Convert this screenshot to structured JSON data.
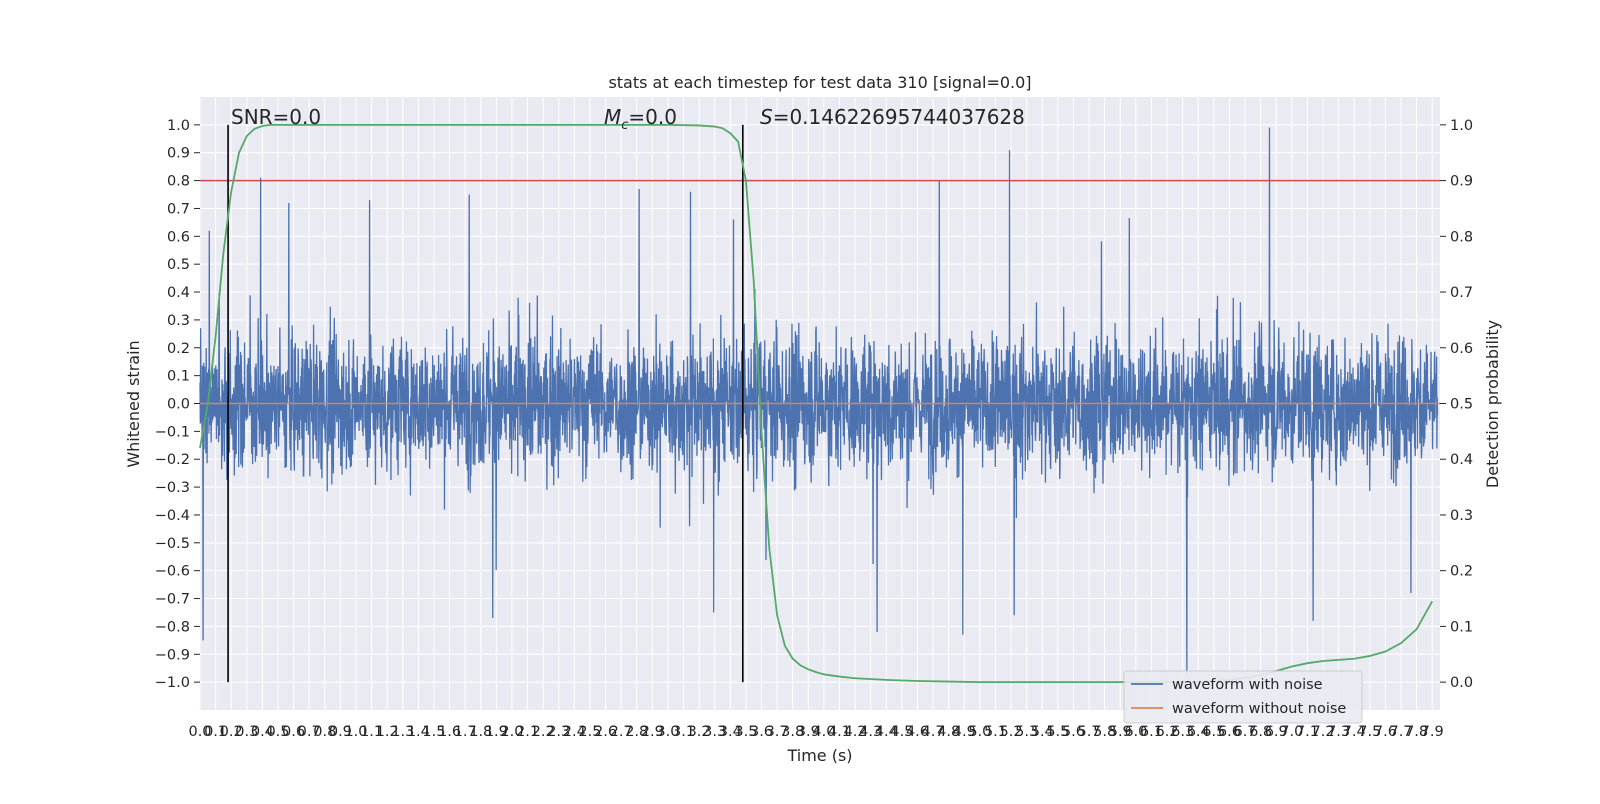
{
  "chart_data": {
    "type": "line",
    "title": "stats at each timestep for test data 310 [signal=0.0]",
    "xlabel": "Time (s)",
    "ylabel": "Whitened strain",
    "y2label": "Detection probability",
    "xlim": [
      0,
      7.95
    ],
    "ylim": [
      -1.1,
      1.1
    ],
    "y2lim": [
      -0.05,
      1.05
    ],
    "grid": true,
    "x_ticks": [
      0.0,
      0.1,
      0.2,
      0.3,
      0.4,
      0.5,
      0.6,
      0.7,
      0.8,
      0.9,
      1.0,
      1.1,
      1.2,
      1.3,
      1.4,
      1.5,
      1.6,
      1.7,
      1.8,
      1.9,
      2.0,
      2.1,
      2.2,
      2.3,
      2.4,
      2.5,
      2.6,
      2.7,
      2.8,
      2.9,
      3.0,
      3.1,
      3.2,
      3.3,
      3.4,
      3.5,
      3.6,
      3.7,
      3.8,
      3.9,
      4.0,
      4.1,
      4.2,
      4.3,
      4.4,
      4.5,
      4.6,
      4.7,
      4.8,
      4.9,
      5.0,
      5.1,
      5.2,
      5.3,
      5.4,
      5.5,
      5.6,
      5.7,
      5.8,
      5.9,
      6.0,
      6.1,
      6.2,
      6.3,
      6.4,
      6.5,
      6.6,
      6.7,
      6.8,
      6.9,
      7.0,
      7.1,
      7.2,
      7.3,
      7.4,
      7.5,
      7.6,
      7.7,
      7.8,
      7.9
    ],
    "y_ticks": [
      -1.0,
      -0.9,
      -0.8,
      -0.7,
      -0.6,
      -0.5,
      -0.4,
      -0.3,
      -0.2,
      -0.1,
      0.0,
      0.1,
      0.2,
      0.3,
      0.4,
      0.5,
      0.6,
      0.7,
      0.8,
      0.9,
      1.0
    ],
    "y2_ticks": [
      0.0,
      0.1,
      0.2,
      0.3,
      0.4,
      0.5,
      0.6,
      0.7,
      0.8,
      0.9,
      1.0
    ],
    "threshold": {
      "y2": 0.9,
      "color": "#c44e52"
    },
    "markers": [
      {
        "x": 0.18
      },
      {
        "x": 3.48
      }
    ],
    "annotations": {
      "snr": "SNR=0.0",
      "mc_symbol": "M",
      "mc_sub": "c",
      "mc_value": "=0.0",
      "s_symbol": "S",
      "s_value": "=0.14622695744037628"
    },
    "series": [
      {
        "name": "waveform with noise",
        "color": "#4c72b0",
        "axis": "left",
        "description_points": "noisy strain, roughly ±0.35 band with spikes to ±0.8",
        "peaks": [
          {
            "x": 0.02,
            "y": -0.85
          },
          {
            "x": 0.06,
            "y": 0.62
          },
          {
            "x": 0.39,
            "y": 0.81
          },
          {
            "x": 0.57,
            "y": 0.72
          },
          {
            "x": 1.09,
            "y": 0.73
          },
          {
            "x": 1.73,
            "y": 0.75
          },
          {
            "x": 1.88,
            "y": -0.77
          },
          {
            "x": 2.82,
            "y": 0.77
          },
          {
            "x": 3.15,
            "y": 0.76
          },
          {
            "x": 3.3,
            "y": -0.75
          },
          {
            "x": 4.35,
            "y": -0.82
          },
          {
            "x": 4.75,
            "y": 0.8
          },
          {
            "x": 4.9,
            "y": -0.83
          },
          {
            "x": 5.2,
            "y": 0.91
          },
          {
            "x": 5.23,
            "y": -0.76
          },
          {
            "x": 6.34,
            "y": -0.97
          },
          {
            "x": 6.87,
            "y": 0.99
          },
          {
            "x": 7.15,
            "y": -0.78
          },
          {
            "x": 7.78,
            "y": -0.68
          }
        ]
      },
      {
        "name": "waveform without noise",
        "color": "#dd8452",
        "axis": "left",
        "x": [
          0.0,
          7.95
        ],
        "y": [
          0.0,
          0.0
        ]
      },
      {
        "name": "",
        "color": "#55a868",
        "axis": "right",
        "x": [
          0.0,
          0.05,
          0.1,
          0.15,
          0.2,
          0.25,
          0.3,
          0.35,
          0.4,
          0.45,
          0.5,
          0.6,
          0.8,
          1.0,
          1.5,
          2.0,
          2.5,
          3.0,
          3.2,
          3.3,
          3.35,
          3.4,
          3.45,
          3.5,
          3.55,
          3.6,
          3.65,
          3.7,
          3.75,
          3.8,
          3.85,
          3.9,
          3.95,
          4.0,
          4.1,
          4.2,
          4.4,
          4.6,
          4.8,
          5.0,
          5.5,
          6.0,
          6.4,
          6.5,
          6.6,
          6.7,
          6.8,
          6.9,
          7.0,
          7.1,
          7.2,
          7.3,
          7.4,
          7.5,
          7.6,
          7.7,
          7.8,
          7.9
        ],
        "y": [
          0.42,
          0.5,
          0.62,
          0.77,
          0.88,
          0.95,
          0.98,
          0.993,
          0.998,
          1.0,
          1.0,
          1.0,
          1.0,
          1.0,
          1.0,
          1.0,
          1.0,
          1.0,
          0.999,
          0.997,
          0.994,
          0.985,
          0.97,
          0.9,
          0.72,
          0.45,
          0.24,
          0.12,
          0.065,
          0.042,
          0.03,
          0.023,
          0.018,
          0.014,
          0.01,
          0.007,
          0.004,
          0.002,
          0.001,
          0.0,
          0.0,
          0.0,
          0.0,
          0.002,
          0.004,
          0.008,
          0.012,
          0.02,
          0.028,
          0.034,
          0.038,
          0.04,
          0.042,
          0.047,
          0.055,
          0.07,
          0.095,
          0.145
        ]
      }
    ],
    "legend": {
      "placement": "lower-right",
      "entries": [
        "waveform with noise",
        "waveform without noise"
      ]
    }
  }
}
